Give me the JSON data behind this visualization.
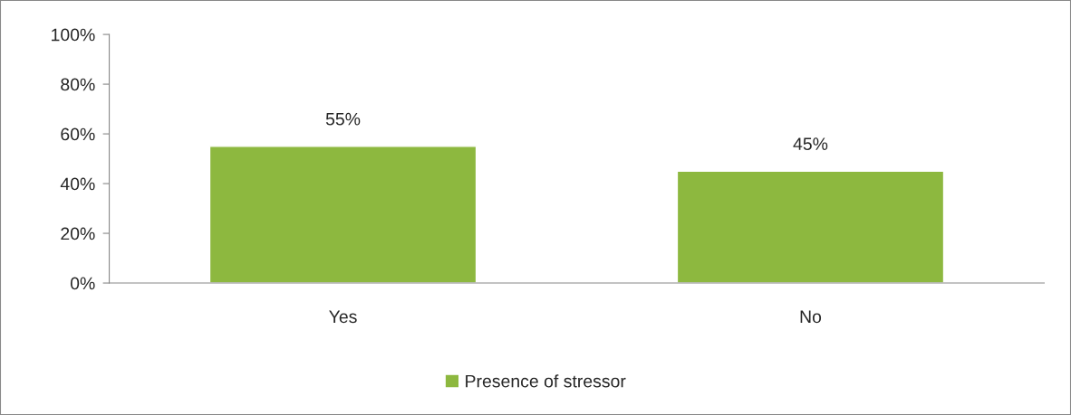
{
  "chart_data": {
    "type": "bar",
    "categories": [
      "Yes",
      "No"
    ],
    "series": [
      {
        "name": "Presence of stressor",
        "color": "#8db83f",
        "values": [
          55,
          45
        ],
        "value_labels": [
          "55%",
          "45%"
        ]
      }
    ],
    "ylim": [
      0,
      100
    ],
    "yticks": [
      {
        "value": 0,
        "label": "0%"
      },
      {
        "value": 20,
        "label": "20%"
      },
      {
        "value": 40,
        "label": "40%"
      },
      {
        "value": 60,
        "label": "60%"
      },
      {
        "value": 80,
        "label": "80%"
      },
      {
        "value": 100,
        "label": "100%"
      }
    ],
    "grid": false,
    "legend": "bottom"
  }
}
